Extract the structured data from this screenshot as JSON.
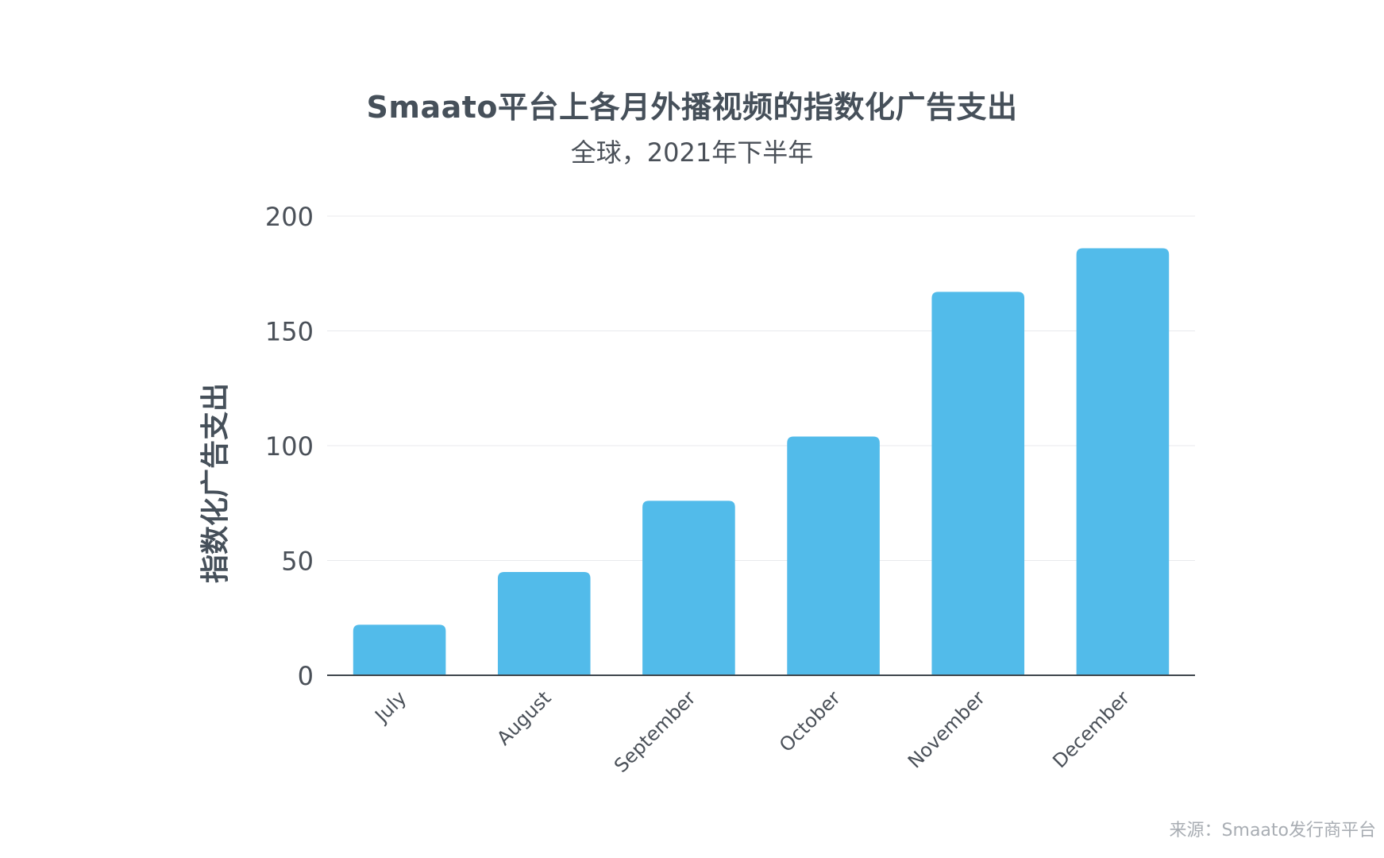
{
  "chart_data": {
    "type": "bar",
    "title": "Smaato平台上各月外播视频的指数化广告支出",
    "subtitle": "全球，2021年下半年",
    "xlabel": "",
    "ylabel": "指数化广告支出",
    "categories": [
      "July",
      "August",
      "September",
      "October",
      "November",
      "December"
    ],
    "values": [
      22,
      45,
      76,
      104,
      167,
      186
    ],
    "ylim": [
      0,
      200
    ],
    "yticks": [
      0,
      50,
      100,
      150,
      200
    ],
    "grid": true,
    "bar_color": "#52bbea",
    "source": "来源：Smaato发行商平台"
  }
}
